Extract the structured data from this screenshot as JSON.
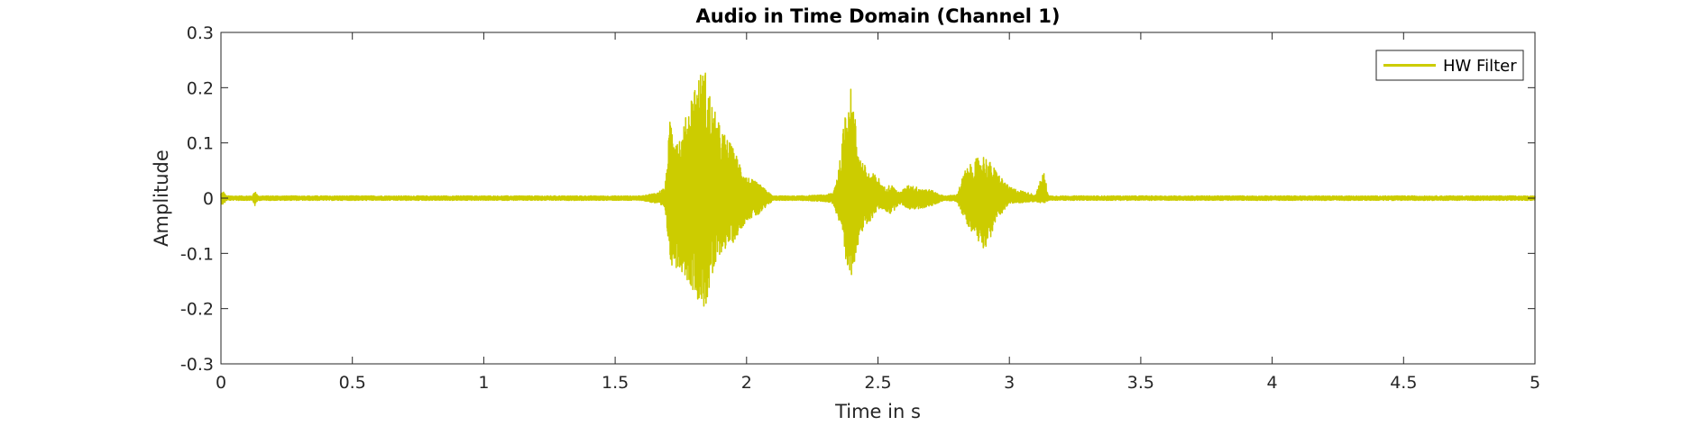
{
  "chart_data": {
    "type": "line",
    "title": "Audio in Time Domain (Channel 1)",
    "xlabel": "Time in s",
    "ylabel": "Amplitude",
    "xlim": [
      0,
      5
    ],
    "ylim": [
      -0.3,
      0.3
    ],
    "x_ticks": [
      0,
      0.5,
      1,
      1.5,
      2,
      2.5,
      3,
      3.5,
      4,
      4.5,
      5
    ],
    "x_tick_labels": [
      "0",
      "0.5",
      "1",
      "1.5",
      "2",
      "2.5",
      "3",
      "3.5",
      "4",
      "4.5",
      "5"
    ],
    "y_ticks": [
      0.3,
      0.2,
      0.1,
      0,
      -0.1,
      -0.2,
      -0.3
    ],
    "y_tick_labels": [
      "0.3",
      "0.2",
      "0.1",
      "0",
      "-0.1",
      "-0.2",
      "-0.3"
    ],
    "grid": false,
    "legend_position": "top-right",
    "series": [
      {
        "name": "HW Filter",
        "color": "#cccc00",
        "envelope": {
          "x": [
            0,
            0.01,
            0.02,
            0.12,
            0.13,
            0.14,
            0.3,
            1.0,
            1.6,
            1.66,
            1.69,
            1.71,
            1.75,
            1.8,
            1.84,
            1.87,
            1.9,
            1.95,
            2.0,
            2.05,
            2.1,
            2.2,
            2.3,
            2.33,
            2.36,
            2.38,
            2.4,
            2.43,
            2.46,
            2.5,
            2.52,
            2.55,
            2.58,
            2.62,
            2.65,
            2.7,
            2.75,
            2.8,
            2.83,
            2.87,
            2.9,
            2.92,
            2.95,
            3.0,
            3.1,
            3.13,
            3.15,
            3.3,
            4.0,
            4.5,
            5.0
          ],
          "upper": [
            0.01,
            0.012,
            0.004,
            0.004,
            0.015,
            0.004,
            0.004,
            0.004,
            0.004,
            0.01,
            0.02,
            0.15,
            0.11,
            0.21,
            0.24,
            0.17,
            0.13,
            0.09,
            0.04,
            0.025,
            0.004,
            0.004,
            0.006,
            0.01,
            0.08,
            0.2,
            0.2,
            0.08,
            0.05,
            0.04,
            0.02,
            0.025,
            0.01,
            0.025,
            0.02,
            0.015,
            0.004,
            0.006,
            0.05,
            0.07,
            0.08,
            0.07,
            0.05,
            0.02,
            0.006,
            0.05,
            0.004,
            0.004,
            0.004,
            0.004,
            0.004
          ],
          "lower": [
            -0.01,
            -0.012,
            -0.004,
            -0.004,
            -0.015,
            -0.004,
            -0.004,
            -0.004,
            -0.004,
            -0.01,
            -0.02,
            -0.12,
            -0.13,
            -0.17,
            -0.205,
            -0.15,
            -0.1,
            -0.08,
            -0.04,
            -0.03,
            -0.004,
            -0.004,
            -0.006,
            -0.01,
            -0.06,
            -0.14,
            -0.14,
            -0.07,
            -0.05,
            -0.02,
            -0.02,
            -0.03,
            -0.01,
            -0.02,
            -0.02,
            -0.015,
            -0.004,
            -0.006,
            -0.04,
            -0.07,
            -0.09,
            -0.085,
            -0.04,
            -0.01,
            -0.006,
            -0.01,
            -0.004,
            -0.004,
            -0.004,
            -0.004,
            -0.004
          ]
        }
      }
    ]
  }
}
